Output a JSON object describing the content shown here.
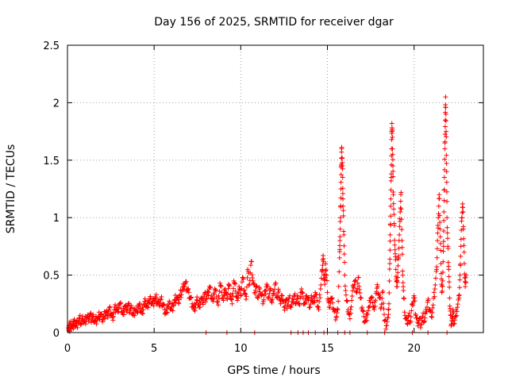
{
  "chart_data": {
    "type": "scatter",
    "title": "Day 156 of 2025, SRMTID for receiver dgar",
    "xlabel": "GPS time / hours",
    "ylabel": "SRMTID / TECUs",
    "xlim": [
      0,
      24
    ],
    "ylim": [
      0,
      2.5
    ],
    "x_ticks": [
      0,
      5,
      10,
      15,
      20
    ],
    "y_ticks": [
      0,
      0.5,
      1,
      1.5,
      2,
      2.5
    ],
    "x_tick_labels": [
      "0",
      "5",
      "10",
      "15",
      "20"
    ],
    "y_tick_labels": [
      "0",
      "0.5",
      "1",
      "1.5",
      "2",
      "2.5"
    ],
    "grid": true,
    "marker": "+",
    "color": "#ff0000",
    "series": [
      {
        "name": "SRMTID",
        "points": [
          [
            0.05,
            0.04
          ],
          [
            0.1,
            0.06
          ],
          [
            0.15,
            0.03
          ],
          [
            0.2,
            0.08
          ],
          [
            0.3,
            0.05
          ],
          [
            0.35,
            0.07
          ],
          [
            0.4,
            0.1
          ],
          [
            0.5,
            0.06
          ],
          [
            0.6,
            0.09
          ],
          [
            0.7,
            0.12
          ],
          [
            0.8,
            0.08
          ],
          [
            0.9,
            0.11
          ],
          [
            1.0,
            0.1
          ],
          [
            1.1,
            0.13
          ],
          [
            1.2,
            0.12
          ],
          [
            1.3,
            0.15
          ],
          [
            1.4,
            0.11
          ],
          [
            1.5,
            0.14
          ],
          [
            1.6,
            0.1
          ],
          [
            1.7,
            0.12
          ],
          [
            1.8,
            0.13
          ],
          [
            1.9,
            0.16
          ],
          [
            2.0,
            0.11
          ],
          [
            2.1,
            0.14
          ],
          [
            2.2,
            0.18
          ],
          [
            2.3,
            0.15
          ],
          [
            2.4,
            0.2
          ],
          [
            2.5,
            0.17
          ],
          [
            2.6,
            0.13
          ],
          [
            2.7,
            0.2
          ],
          [
            2.8,
            0.22
          ],
          [
            2.9,
            0.18
          ],
          [
            3.0,
            0.25
          ],
          [
            3.1,
            0.21
          ],
          [
            3.2,
            0.16
          ],
          [
            3.3,
            0.23
          ],
          [
            3.4,
            0.2
          ],
          [
            3.5,
            0.24
          ],
          [
            3.6,
            0.19
          ],
          [
            3.7,
            0.22
          ],
          [
            3.8,
            0.15
          ],
          [
            3.9,
            0.2
          ],
          [
            4.0,
            0.18
          ],
          [
            4.1,
            0.23
          ],
          [
            4.2,
            0.21
          ],
          [
            4.3,
            0.17
          ],
          [
            4.4,
            0.24
          ],
          [
            4.5,
            0.27
          ],
          [
            4.6,
            0.22
          ],
          [
            4.7,
            0.26
          ],
          [
            4.8,
            0.3
          ],
          [
            4.9,
            0.25
          ],
          [
            5.0,
            0.28
          ],
          [
            5.1,
            0.3
          ],
          [
            5.2,
            0.26
          ],
          [
            5.3,
            0.24
          ],
          [
            5.4,
            0.29
          ],
          [
            5.5,
            0.25
          ],
          [
            5.6,
            0.2
          ],
          [
            5.7,
            0.17
          ],
          [
            5.8,
            0.22
          ],
          [
            5.9,
            0.26
          ],
          [
            6.0,
            0.2
          ],
          [
            6.1,
            0.24
          ],
          [
            6.2,
            0.28
          ],
          [
            6.3,
            0.3
          ],
          [
            6.4,
            0.26
          ],
          [
            6.5,
            0.33
          ],
          [
            6.6,
            0.36
          ],
          [
            6.7,
            0.4
          ],
          [
            6.8,
            0.43
          ],
          [
            6.9,
            0.38
          ],
          [
            7.0,
            0.35
          ],
          [
            7.1,
            0.3
          ],
          [
            7.2,
            0.25
          ],
          [
            7.3,
            0.2
          ],
          [
            7.4,
            0.24
          ],
          [
            7.5,
            0.28
          ],
          [
            7.6,
            0.22
          ],
          [
            7.7,
            0.3
          ],
          [
            7.8,
            0.26
          ],
          [
            7.9,
            0.33
          ],
          [
            8.0,
            0.29
          ],
          [
            8.1,
            0.35
          ],
          [
            8.2,
            0.4
          ],
          [
            8.3,
            0.32
          ],
          [
            8.4,
            0.27
          ],
          [
            8.5,
            0.38
          ],
          [
            8.6,
            0.31
          ],
          [
            8.7,
            0.24
          ],
          [
            8.8,
            0.43
          ],
          [
            8.9,
            0.35
          ],
          [
            9.0,
            0.28
          ],
          [
            9.1,
            0.38
          ],
          [
            9.2,
            0.3
          ],
          [
            9.3,
            0.42
          ],
          [
            9.4,
            0.33
          ],
          [
            9.5,
            0.25
          ],
          [
            9.6,
            0.45
          ],
          [
            9.7,
            0.36
          ],
          [
            9.8,
            0.28
          ],
          [
            9.9,
            0.4
          ],
          [
            10.0,
            0.32
          ],
          [
            10.1,
            0.48
          ],
          [
            10.2,
            0.37
          ],
          [
            10.3,
            0.29
          ],
          [
            10.4,
            0.55
          ],
          [
            10.5,
            0.42
          ],
          [
            10.6,
            0.62
          ],
          [
            10.7,
            0.45
          ],
          [
            10.8,
            0.35
          ],
          [
            10.9,
            0.4
          ],
          [
            11.0,
            0.3
          ],
          [
            11.1,
            0.38
          ],
          [
            11.2,
            0.32
          ],
          [
            11.3,
            0.27
          ],
          [
            11.4,
            0.36
          ],
          [
            11.5,
            0.42
          ],
          [
            11.6,
            0.31
          ],
          [
            11.7,
            0.37
          ],
          [
            11.8,
            0.26
          ],
          [
            11.9,
            0.34
          ],
          [
            12.0,
            0.43
          ],
          [
            12.1,
            0.3
          ],
          [
            12.2,
            0.36
          ],
          [
            12.3,
            0.25
          ],
          [
            12.4,
            0.32
          ],
          [
            12.5,
            0.22
          ],
          [
            12.6,
            0.28
          ],
          [
            12.7,
            0.24
          ],
          [
            12.8,
            0.3
          ],
          [
            12.9,
            0.22
          ],
          [
            13.0,
            0.27
          ],
          [
            13.1,
            0.32
          ],
          [
            13.2,
            0.26
          ],
          [
            13.3,
            0.3
          ],
          [
            13.4,
            0.24
          ],
          [
            13.5,
            0.38
          ],
          [
            13.6,
            0.3
          ],
          [
            13.7,
            0.25
          ],
          [
            13.8,
            0.32
          ],
          [
            13.9,
            0.28
          ],
          [
            14.0,
            0.22
          ],
          [
            14.1,
            0.3
          ],
          [
            14.2,
            0.26
          ],
          [
            14.3,
            0.35
          ],
          [
            14.4,
            0.28
          ],
          [
            14.5,
            0.2
          ],
          [
            14.6,
            0.38
          ],
          [
            14.7,
            0.55
          ],
          [
            14.75,
            0.67
          ],
          [
            14.8,
            0.5
          ],
          [
            14.85,
            0.42
          ],
          [
            14.9,
            0.6
          ],
          [
            15.0,
            0.35
          ],
          [
            15.1,
            0.22
          ],
          [
            15.2,
            0.3
          ],
          [
            15.3,
            0.26
          ],
          [
            15.4,
            0.18
          ],
          [
            15.5,
            0.13
          ],
          [
            15.6,
            0.2
          ],
          [
            15.7,
            0.65
          ],
          [
            15.72,
            0.8
          ],
          [
            15.75,
            1.0
          ],
          [
            15.78,
            1.25
          ],
          [
            15.8,
            1.45
          ],
          [
            15.82,
            1.6
          ],
          [
            15.85,
            1.52
          ],
          [
            15.88,
            1.35
          ],
          [
            15.9,
            1.1
          ],
          [
            15.95,
            0.85
          ],
          [
            16.0,
            0.5
          ],
          [
            16.1,
            0.28
          ],
          [
            16.2,
            0.2
          ],
          [
            16.3,
            0.12
          ],
          [
            16.4,
            0.28
          ],
          [
            16.5,
            0.4
          ],
          [
            16.6,
            0.45
          ],
          [
            16.7,
            0.35
          ],
          [
            16.8,
            0.48
          ],
          [
            16.9,
            0.3
          ],
          [
            17.0,
            0.22
          ],
          [
            17.1,
            0.14
          ],
          [
            17.2,
            0.1
          ],
          [
            17.3,
            0.16
          ],
          [
            17.4,
            0.22
          ],
          [
            17.5,
            0.3
          ],
          [
            17.6,
            0.26
          ],
          [
            17.7,
            0.2
          ],
          [
            17.8,
            0.34
          ],
          [
            17.9,
            0.4
          ],
          [
            18.0,
            0.3
          ],
          [
            18.1,
            0.22
          ],
          [
            18.2,
            0.36
          ],
          [
            18.3,
            0.1
          ],
          [
            18.4,
            0.06
          ],
          [
            18.5,
            0.13
          ],
          [
            18.55,
            0.25
          ],
          [
            18.6,
            0.6
          ],
          [
            18.62,
            0.85
          ],
          [
            18.65,
            1.1
          ],
          [
            18.68,
            1.35
          ],
          [
            18.7,
            1.6
          ],
          [
            18.72,
            1.82
          ],
          [
            18.75,
            1.7
          ],
          [
            18.78,
            1.45
          ],
          [
            18.8,
            1.2
          ],
          [
            18.85,
            0.95
          ],
          [
            18.9,
            0.72
          ],
          [
            18.95,
            0.55
          ],
          [
            19.0,
            0.4
          ],
          [
            19.05,
            0.48
          ],
          [
            19.1,
            0.65
          ],
          [
            19.15,
            0.85
          ],
          [
            19.2,
            1.05
          ],
          [
            19.25,
            1.22
          ],
          [
            19.3,
            0.8
          ],
          [
            19.35,
            0.5
          ],
          [
            19.4,
            0.3
          ],
          [
            19.5,
            0.12
          ],
          [
            19.6,
            0.08
          ],
          [
            19.7,
            0.15
          ],
          [
            19.8,
            0.1
          ],
          [
            19.9,
            0.25
          ],
          [
            20.0,
            0.32
          ],
          [
            20.1,
            0.15
          ],
          [
            20.2,
            0.09
          ],
          [
            20.3,
            0.12
          ],
          [
            20.4,
            0.07
          ],
          [
            20.5,
            0.14
          ],
          [
            20.6,
            0.1
          ],
          [
            20.7,
            0.18
          ],
          [
            20.8,
            0.28
          ],
          [
            20.9,
            0.2
          ],
          [
            21.0,
            0.14
          ],
          [
            21.1,
            0.24
          ],
          [
            21.2,
            0.38
          ],
          [
            21.3,
            0.55
          ],
          [
            21.35,
            0.8
          ],
          [
            21.4,
            1.0
          ],
          [
            21.45,
            1.2
          ],
          [
            21.5,
            0.9
          ],
          [
            21.55,
            0.6
          ],
          [
            21.6,
            0.35
          ],
          [
            21.65,
            0.45
          ],
          [
            21.7,
            0.75
          ],
          [
            21.72,
            1.05
          ],
          [
            21.75,
            1.35
          ],
          [
            21.78,
            1.65
          ],
          [
            21.8,
            1.85
          ],
          [
            21.82,
            2.05
          ],
          [
            21.85,
            1.75
          ],
          [
            21.88,
            1.4
          ],
          [
            21.9,
            1.0
          ],
          [
            21.95,
            0.75
          ],
          [
            22.0,
            0.55
          ],
          [
            22.05,
            0.3
          ],
          [
            22.1,
            0.15
          ],
          [
            22.15,
            0.07
          ],
          [
            22.2,
            0.12
          ],
          [
            22.25,
            0.2
          ],
          [
            22.3,
            0.08
          ],
          [
            22.4,
            0.14
          ],
          [
            22.5,
            0.22
          ],
          [
            22.6,
            0.3
          ],
          [
            22.65,
            0.5
          ],
          [
            22.7,
            0.75
          ],
          [
            22.75,
            1.0
          ],
          [
            22.8,
            1.12
          ],
          [
            22.85,
            0.9
          ],
          [
            22.9,
            0.6
          ],
          [
            22.95,
            0.4
          ],
          [
            23.0,
            0.5
          ]
        ]
      }
    ],
    "baseline_markers_x": [
      8.0,
      9.2,
      10.8,
      12.9,
      13.3,
      13.6,
      13.9,
      14.3,
      14.8,
      15.0,
      15.6,
      16.0,
      16.3,
      17.3,
      18.3,
      19.9,
      20.8,
      21.9
    ]
  }
}
